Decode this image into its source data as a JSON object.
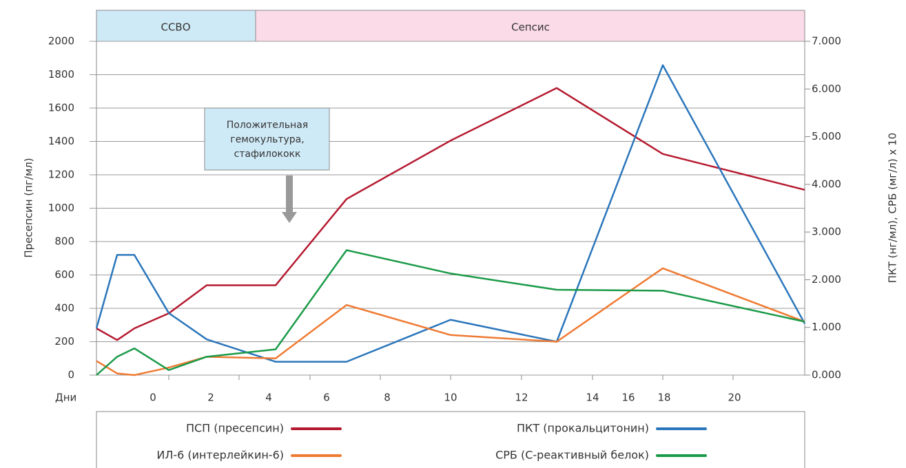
{
  "chart_data": {
    "type": "line",
    "ylabel": "Пресепсин (пг/мл)",
    "y2label": "ПКТ (нг/мл), СРБ (мг/л) х 10",
    "xlabel": "Дни",
    "day_labels": [
      "0",
      "2",
      "4",
      "6",
      "8",
      "10",
      "12",
      "14",
      "16",
      "18",
      "20"
    ],
    "phases": [
      "ССВО",
      "Сепсис"
    ],
    "annotation": [
      "Положительная",
      "гемокультура,",
      "стафилококк"
    ],
    "categories": [
      null,
      null,
      null,
      null,
      null,
      null,
      null,
      null,
      null,
      null,
      null
    ],
    "ylim": [
      0,
      2000
    ],
    "yticks": [
      0,
      200,
      400,
      600,
      800,
      1000,
      1200,
      1400,
      1600,
      1800,
      2000
    ],
    "y2lim": [
      0,
      7
    ],
    "y2ticks": [
      {
        "value": 0,
        "label": "0.000"
      },
      {
        "value": 1,
        "label": "1.000"
      },
      {
        "value": 2,
        "label": "2.000"
      },
      {
        "value": 3,
        "label": "3.000"
      },
      {
        "value": 4,
        "label": "4.000"
      },
      {
        "value": 5,
        "label": "5.000"
      },
      {
        "value": 6,
        "label": "6.000"
      },
      {
        "value": 7,
        "label": "7.000"
      }
    ],
    "grid": true,
    "series": [
      {
        "name": "ПСП (пресепсин)",
        "color": "#b5192f",
        "values": [
          280,
          210,
          280,
          370,
          538,
          538,
          1055,
          1405,
          1720,
          1325,
          1110
        ]
      },
      {
        "name": "ПКТ (прокальцитонин)",
        "color": "#2a76bb",
        "axis": "y2",
        "values": [
          0.98,
          2.52,
          2.52,
          1.3,
          0.75,
          0.28,
          0.28,
          1.16,
          0.7,
          6.5,
          1.08
        ]
      },
      {
        "name": "ИЛ-6 (интерлейкин-6)",
        "color": "#ef7a32",
        "values": [
          85,
          10,
          0,
          45,
          110,
          100,
          420,
          240,
          200,
          640,
          320
        ]
      },
      {
        "name": "СРБ (С-реактивный белок)",
        "color": "#1a9a48",
        "axis": "y2",
        "values": [
          0,
          0.385,
          0.56,
          0.105,
          0.385,
          0.54,
          2.62,
          2.13,
          1.79,
          1.77,
          1.12
        ]
      }
    ]
  }
}
